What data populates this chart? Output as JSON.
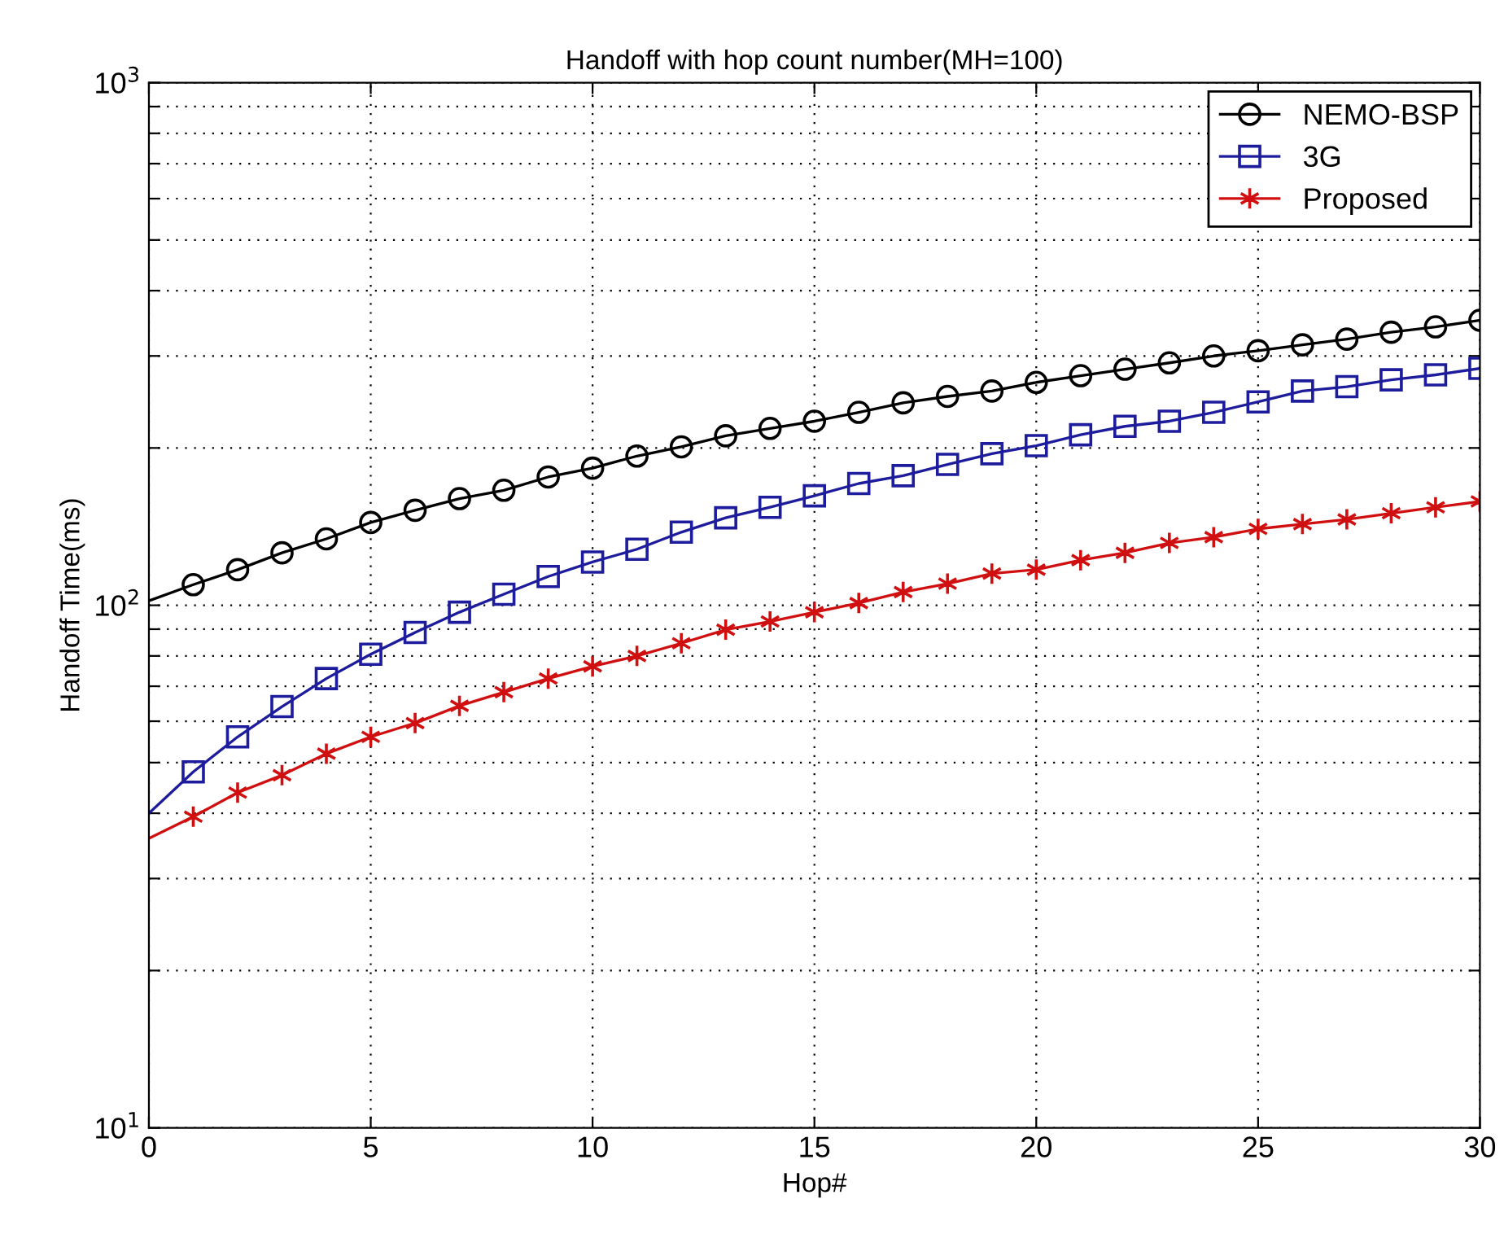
{
  "chart_data": {
    "type": "line",
    "title": "Handoff with hop count number(MH=100)",
    "xlabel": "Hop#",
    "ylabel": "Handoff Time(ms)",
    "x": [
      0,
      1,
      2,
      3,
      4,
      5,
      6,
      7,
      8,
      9,
      10,
      11,
      12,
      13,
      14,
      15,
      16,
      17,
      18,
      19,
      20,
      21,
      22,
      23,
      24,
      25,
      26,
      27,
      28,
      29,
      30
    ],
    "series": [
      {
        "name": "NEMO-BSP",
        "color": "#000000",
        "marker": "circle",
        "values": [
          102,
          109.5,
          117,
          126,
          134,
          144,
          152,
          160,
          166,
          176,
          183,
          193,
          201,
          211,
          218,
          225,
          234,
          244,
          251,
          257,
          267,
          275,
          283,
          291,
          300,
          307,
          315,
          323,
          333,
          341,
          351
        ]
      },
      {
        "name": "3G",
        "color": "#1c1c9c",
        "marker": "square",
        "values": [
          40,
          48,
          56,
          64,
          72.4,
          80.6,
          88.7,
          97,
          105,
          113.5,
          121,
          128,
          138,
          147,
          154,
          162,
          171,
          177,
          186,
          195,
          202,
          212,
          220,
          225,
          234,
          245,
          257,
          262,
          270,
          276,
          284
        ]
      },
      {
        "name": "Proposed",
        "color": "#d01010",
        "marker": "cross",
        "values": [
          35.8,
          39.4,
          43.8,
          47.3,
          52,
          56,
          59.5,
          64.2,
          68.2,
          72.4,
          76.4,
          80,
          84.6,
          89.8,
          93.1,
          97,
          101,
          106,
          110,
          115,
          117,
          122,
          126,
          131.6,
          135,
          140,
          143,
          146,
          150,
          154,
          158
        ]
      }
    ],
    "log": "y",
    "xlim": [
      0,
      30
    ],
    "xticks": [
      0,
      5,
      10,
      15,
      20,
      25,
      30
    ],
    "ylim": [
      10,
      1000
    ],
    "yticks": [
      {
        "value": 10,
        "label": "10$^{1}$"
      },
      {
        "value": 20,
        "label": null
      },
      {
        "value": 30,
        "label": null
      },
      {
        "value": 40,
        "label": null
      },
      {
        "value": 50,
        "label": null
      },
      {
        "value": 60,
        "label": null
      },
      {
        "value": 70,
        "label": null
      },
      {
        "value": 80,
        "label": null
      },
      {
        "value": 90,
        "label": null
      },
      {
        "value": 100,
        "label": "10$^{2}$"
      },
      {
        "value": 200,
        "label": null
      },
      {
        "value": 300,
        "label": null
      },
      {
        "value": 400,
        "label": null
      },
      {
        "value": 500,
        "label": null
      },
      {
        "value": 600,
        "label": null
      },
      {
        "value": 700,
        "label": null
      },
      {
        "value": 800,
        "label": null
      },
      {
        "value": 900,
        "label": null
      },
      {
        "value": 1000,
        "label": "10$^{3}$"
      }
    ],
    "grid": true,
    "legend": "top right",
    "line_style": "solid"
  }
}
